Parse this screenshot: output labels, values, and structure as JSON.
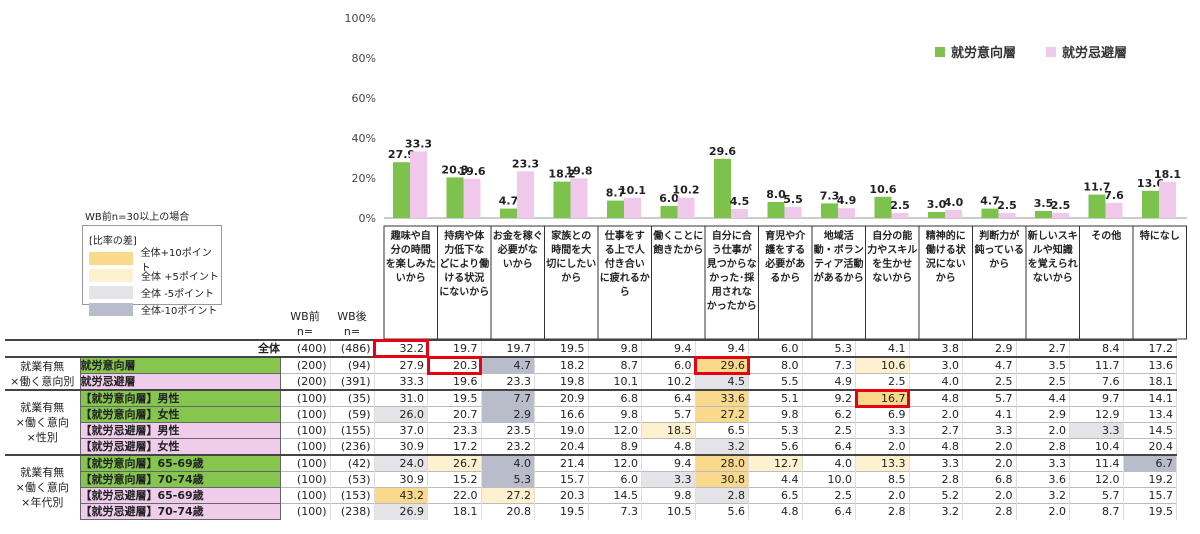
{
  "chart_data": {
    "type": "bar",
    "yticks": [
      "0%",
      "20%",
      "40%",
      "60%",
      "80%",
      "100%"
    ],
    "ylim": [
      0,
      100
    ],
    "categories": [
      "趣味や自分の時間を楽しみたいから",
      "持病や体力低下などにより働ける状況にないから",
      "お金を稼ぐ必要がないから",
      "家族との時間を大切にしたいから",
      "仕事をする上で人付き合いに疲れるから",
      "働くことに飽きたから",
      "自分に合う仕事が見つからなかった･採用されなかったから",
      "育児や介護をする必要があるから",
      "地域活動・ボランティア活動があるから",
      "自分の能力やスキルを生かせないから",
      "精神的に働ける状況にないから",
      "判断力が鈍っているから",
      "新しいスキルや知識を覚えられないから",
      "その他",
      "特になし"
    ],
    "category_lines": [
      [
        "趣味や自",
        "分の時間",
        "を楽しみた",
        "いから"
      ],
      [
        "持病や体",
        "力低下な",
        "どにより働",
        "ける状況",
        "にないから"
      ],
      [
        "お金を稼ぐ",
        "必要がな",
        "いから"
      ],
      [
        "家族との",
        "時間を大",
        "切にしたい",
        "から"
      ],
      [
        "仕事をす",
        "る上で人",
        "付き合い",
        "に疲れるか",
        "ら"
      ],
      [
        "働くことに",
        "飽きたから"
      ],
      [
        "自分に合",
        "う仕事が",
        "見つからな",
        "かった･採",
        "用されな",
        "かったから"
      ],
      [
        "育児や介",
        "護をする",
        "必要があ",
        "るから"
      ],
      [
        "地域活",
        "動・ボラン",
        "ティア活動",
        "があるから"
      ],
      [
        "自分の能",
        "力やスキル",
        "を生かせ",
        "ないから"
      ],
      [
        "精神的に",
        "働ける状",
        "況にない",
        "から"
      ],
      [
        "判断力が",
        "鈍っている",
        "から"
      ],
      [
        "新しいスキ",
        "ルや知識",
        "を覚えられ",
        "ないから"
      ],
      [
        "その他"
      ],
      [
        "特になし"
      ]
    ],
    "series": [
      {
        "name": "就労意向層",
        "color": "#7cc24c",
        "values": [
          27.9,
          20.3,
          4.7,
          18.2,
          8.7,
          6.0,
          29.6,
          8.0,
          7.3,
          10.6,
          3.0,
          4.7,
          3.5,
          11.7,
          13.6
        ]
      },
      {
        "name": "就労忌避層",
        "color": "#f0c8ec",
        "values": [
          33.3,
          19.6,
          23.3,
          19.8,
          10.1,
          10.2,
          4.5,
          5.5,
          4.9,
          2.5,
          4.0,
          2.5,
          2.5,
          7.6,
          18.1
        ]
      }
    ]
  },
  "note": "WB前n=30以上の場合",
  "ratio_key": {
    "title": "[比率の差]",
    "items": [
      {
        "label": "全体+10ポイント",
        "color": "#f9d98c"
      },
      {
        "label": "全体 +5ポイント",
        "color": "#fdf1cf"
      },
      {
        "label": "全体 -5ポイント",
        "color": "#e3e3e8"
      },
      {
        "label": "全体-10ポイント",
        "color": "#b9bccb"
      }
    ]
  },
  "table": {
    "n_before_header": "WB前\nn=",
    "n_after_header": "WB後\nn=",
    "total_label": "全体",
    "groups": [
      {
        "label": "就業有無\n×働く意向別",
        "rows": [
          1,
          2
        ]
      },
      {
        "label": "就業有無\n×働く意向\n×性別",
        "rows": [
          3,
          4,
          5,
          6
        ]
      },
      {
        "label": "就業有無\n×働く意向\n×年代別",
        "rows": [
          7,
          8,
          9,
          10
        ]
      }
    ],
    "rows": [
      {
        "label": "全体",
        "kind": "all",
        "n1": "(400)",
        "n2": "(486)",
        "values": [
          "32.2",
          "19.7",
          "19.7",
          "19.5",
          "9.8",
          "9.4",
          "9.4",
          "6.0",
          "5.3",
          "4.1",
          "3.8",
          "2.9",
          "2.7",
          "8.4",
          "17.2"
        ],
        "shade": [
          0,
          0,
          0,
          0,
          0,
          0,
          0,
          0,
          0,
          0,
          0,
          0,
          0,
          0,
          0
        ]
      },
      {
        "label": "就労意向層",
        "kind": "g",
        "n1": "(200)",
        "n2": "(94)",
        "values": [
          "27.9",
          "20.3",
          "4.7",
          "18.2",
          "8.7",
          "6.0",
          "29.6",
          "8.0",
          "7.3",
          "10.6",
          "3.0",
          "4.7",
          "3.5",
          "11.7",
          "13.6"
        ],
        "shade": [
          0,
          0,
          -2,
          0,
          0,
          0,
          2,
          0,
          0,
          1,
          0,
          0,
          0,
          0,
          0
        ]
      },
      {
        "label": "就労忌避層",
        "kind": "p",
        "n1": "(200)",
        "n2": "(391)",
        "values": [
          "33.3",
          "19.6",
          "23.3",
          "19.8",
          "10.1",
          "10.2",
          "4.5",
          "5.5",
          "4.9",
          "2.5",
          "4.0",
          "2.5",
          "2.5",
          "7.6",
          "18.1"
        ],
        "shade": [
          0,
          0,
          0,
          0,
          0,
          0,
          -1,
          0,
          0,
          0,
          0,
          0,
          0,
          0,
          0
        ]
      },
      {
        "label": "【就労意向層】男性",
        "kind": "g",
        "n1": "(100)",
        "n2": "(35)",
        "values": [
          "31.0",
          "19.5",
          "7.7",
          "20.9",
          "6.8",
          "6.4",
          "33.6",
          "5.1",
          "9.2",
          "16.7",
          "4.8",
          "5.7",
          "4.4",
          "9.7",
          "14.1"
        ],
        "shade": [
          0,
          0,
          -2,
          0,
          0,
          0,
          2,
          0,
          0,
          2,
          0,
          0,
          0,
          0,
          0
        ]
      },
      {
        "label": "【就労意向層】女性",
        "kind": "g",
        "n1": "(100)",
        "n2": "(59)",
        "values": [
          "26.0",
          "20.7",
          "2.9",
          "16.6",
          "9.8",
          "5.7",
          "27.2",
          "9.8",
          "6.2",
          "6.9",
          "2.0",
          "4.1",
          "2.9",
          "12.9",
          "13.4"
        ],
        "shade": [
          -1,
          0,
          -2,
          0,
          0,
          0,
          2,
          0,
          0,
          0,
          0,
          0,
          0,
          0,
          0
        ]
      },
      {
        "label": "【就労忌避層】男性",
        "kind": "p",
        "n1": "(100)",
        "n2": "(155)",
        "values": [
          "37.0",
          "23.3",
          "23.5",
          "19.0",
          "12.0",
          "18.5",
          "6.5",
          "5.3",
          "2.5",
          "3.3",
          "2.7",
          "3.3",
          "2.0",
          "3.3",
          "14.5"
        ],
        "shade": [
          0,
          0,
          0,
          0,
          0,
          1,
          0,
          0,
          0,
          0,
          0,
          0,
          0,
          -1,
          0
        ]
      },
      {
        "label": "【就労忌避層】女性",
        "kind": "p",
        "n1": "(100)",
        "n2": "(236)",
        "values": [
          "30.9",
          "17.2",
          "23.2",
          "20.4",
          "8.9",
          "4.8",
          "3.2",
          "5.6",
          "6.4",
          "2.0",
          "4.8",
          "2.0",
          "2.8",
          "10.4",
          "20.4"
        ],
        "shade": [
          0,
          0,
          0,
          0,
          0,
          0,
          -1,
          0,
          0,
          0,
          0,
          0,
          0,
          0,
          0
        ]
      },
      {
        "label": "【就労意向層】65-69歳",
        "kind": "g",
        "n1": "(100)",
        "n2": "(42)",
        "values": [
          "24.0",
          "26.7",
          "4.0",
          "21.4",
          "12.0",
          "9.4",
          "28.0",
          "12.7",
          "4.0",
          "13.3",
          "3.3",
          "2.0",
          "3.3",
          "11.4",
          "6.7"
        ],
        "shade": [
          -1,
          1,
          -2,
          0,
          0,
          0,
          2,
          1,
          0,
          1,
          0,
          0,
          0,
          0,
          -2
        ]
      },
      {
        "label": "【就労意向層】70-74歳",
        "kind": "g",
        "n1": "(100)",
        "n2": "(53)",
        "values": [
          "30.9",
          "15.2",
          "5.3",
          "15.7",
          "6.0",
          "3.3",
          "30.8",
          "4.4",
          "10.0",
          "8.5",
          "2.8",
          "6.8",
          "3.6",
          "12.0",
          "19.2"
        ],
        "shade": [
          0,
          0,
          -2,
          0,
          0,
          -1,
          2,
          0,
          0,
          0,
          0,
          0,
          0,
          0,
          0
        ]
      },
      {
        "label": "【就労忌避層】65-69歳",
        "kind": "p",
        "n1": "(100)",
        "n2": "(153)",
        "values": [
          "43.2",
          "22.0",
          "27.2",
          "20.3",
          "14.5",
          "9.8",
          "2.8",
          "6.5",
          "2.5",
          "2.0",
          "5.2",
          "2.0",
          "3.2",
          "5.7",
          "15.7"
        ],
        "shade": [
          2,
          0,
          1,
          0,
          0,
          0,
          -1,
          0,
          0,
          0,
          0,
          0,
          0,
          0,
          0
        ]
      },
      {
        "label": "【就労忌避層】70-74歳",
        "kind": "p",
        "n1": "(100)",
        "n2": "(238)",
        "values": [
          "26.9",
          "18.1",
          "20.8",
          "19.5",
          "7.3",
          "10.5",
          "5.6",
          "4.8",
          "6.4",
          "2.8",
          "3.2",
          "2.8",
          "2.0",
          "8.7",
          "19.5"
        ],
        "shade": [
          -1,
          0,
          0,
          0,
          0,
          0,
          0,
          0,
          0,
          0,
          0,
          0,
          0,
          0,
          0
        ]
      }
    ],
    "highlights": [
      [
        0,
        0
      ],
      [
        1,
        1
      ],
      [
        1,
        6
      ],
      [
        3,
        9
      ]
    ]
  }
}
